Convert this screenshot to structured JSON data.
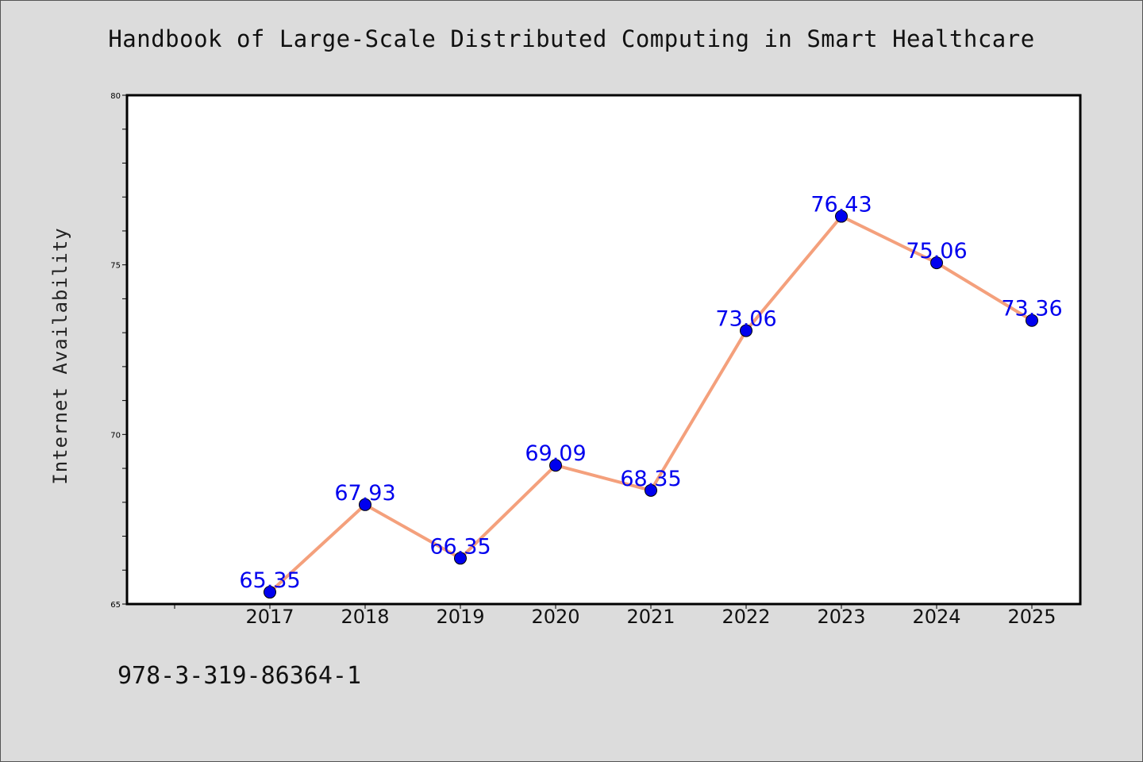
{
  "header": {
    "title": "Handbook of Large-Scale Distributed Computing in Smart Healthcare"
  },
  "footer": {
    "isbn": "978-3-319-86364-1"
  },
  "colors": {
    "line": "#f4a07c",
    "marker": "#0000ee",
    "label": "#0000ee",
    "background": "#dcdcdc",
    "plot_bg": "#ffffff"
  },
  "chart_data": {
    "type": "line",
    "title": "Handbook of Large-Scale Distributed Computing in Smart Healthcare",
    "xlabel": "",
    "ylabel": "Internet Availability",
    "categories": [
      "2017",
      "2018",
      "2019",
      "2020",
      "2021",
      "2022",
      "2023",
      "2024",
      "2025"
    ],
    "series": [
      {
        "values": [
          65.35,
          67.93,
          66.35,
          69.09,
          68.35,
          73.06,
          76.43,
          75.06,
          73.36
        ]
      }
    ],
    "value_labels": [
      "65.35",
      "67.93",
      "66.35",
      "69.09",
      "68.35",
      "73.06",
      "76.43",
      "75.06",
      "73.36"
    ],
    "ylim": [
      65,
      80
    ],
    "yticks": [
      "65",
      "70",
      "75",
      "80"
    ],
    "grid": false,
    "legend": "none"
  }
}
